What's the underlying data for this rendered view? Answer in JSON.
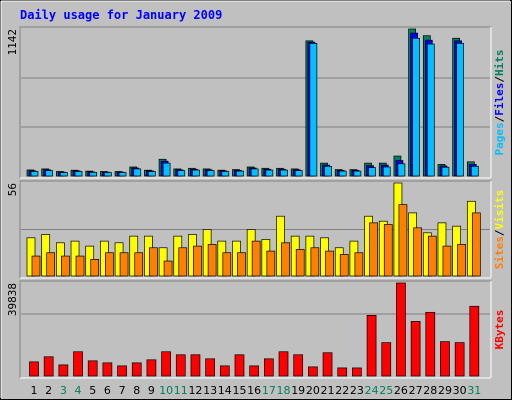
{
  "chart_data": [
    {
      "type": "bar",
      "title": "Daily usage for January 2009",
      "ylim": [
        0,
        1142
      ],
      "yticks": [
        1142
      ],
      "grid_values": [
        380.67,
        761.33
      ],
      "legend_separator": "/",
      "series": [
        {
          "name": "Hits",
          "color": "#00805c",
          "values": [
            47,
            55,
            35,
            45,
            38,
            35,
            35,
            70,
            45,
            130,
            55,
            60,
            55,
            45,
            50,
            70,
            60,
            60,
            55,
            1050,
            100,
            50,
            50,
            100,
            100,
            155,
            1142,
            1090,
            90,
            1070,
            110
          ]
        },
        {
          "name": "Files",
          "color": "#0000ff",
          "values": [
            40,
            48,
            30,
            40,
            32,
            30,
            30,
            62,
            40,
            115,
            48,
            52,
            48,
            40,
            44,
            62,
            52,
            52,
            48,
            1040,
            85,
            44,
            44,
            80,
            85,
            120,
            1110,
            1055,
            78,
            1050,
            90
          ]
        },
        {
          "name": "Pages",
          "color": "#00c0ff",
          "values": [
            35,
            42,
            27,
            35,
            28,
            27,
            27,
            55,
            35,
            100,
            42,
            46,
            42,
            35,
            38,
            55,
            46,
            46,
            42,
            1030,
            75,
            38,
            38,
            65,
            70,
            95,
            1070,
            1025,
            68,
            1030,
            75
          ]
        }
      ]
    },
    {
      "type": "bar",
      "ylim": [
        0,
        56
      ],
      "yticks": [
        56
      ],
      "grid_values": [
        28
      ],
      "legend_separator": "/",
      "series": [
        {
          "name": "Visits",
          "color": "#ffff00",
          "values": [
            23,
            25,
            20,
            21,
            18,
            21,
            20,
            24,
            24,
            17,
            24,
            25,
            28,
            21,
            21,
            28,
            22,
            36,
            24,
            24,
            23,
            17,
            21,
            36,
            33,
            56,
            38,
            26,
            32,
            30,
            45
          ]
        },
        {
          "name": "Sites",
          "color": "#ff8000",
          "values": [
            12,
            14,
            12,
            12,
            10,
            14,
            14,
            14,
            17,
            9,
            17,
            18,
            19,
            14,
            14,
            21,
            15,
            20,
            16,
            17,
            15,
            13,
            14,
            32,
            31,
            43,
            29,
            24,
            18,
            19,
            38
          ]
        }
      ]
    },
    {
      "type": "bar",
      "ylim": [
        0,
        39838
      ],
      "yticks": [
        39838
      ],
      "grid_values": [
        26559
      ],
      "categories": [
        "1",
        "2",
        "3",
        "4",
        "5",
        "6",
        "7",
        "8",
        "9",
        "10",
        "11",
        "12",
        "13",
        "14",
        "15",
        "16",
        "17",
        "18",
        "19",
        "20",
        "21",
        "22",
        "23",
        "24",
        "25",
        "26",
        "27",
        "28",
        "29",
        "30",
        "31"
      ],
      "weekend_indices": [
        2,
        3,
        9,
        10,
        16,
        17,
        23,
        24,
        30
      ],
      "weekend_color": "#00805c",
      "category_color": "#000000",
      "series": [
        {
          "name": "KBytes",
          "color": "#ff0000",
          "values": [
            6060,
            8230,
            4760,
            10390,
            6500,
            5630,
            4330,
            5630,
            6930,
            10390,
            9090,
            9090,
            7360,
            4330,
            9090,
            4330,
            7360,
            10390,
            9090,
            3900,
            9960,
            3460,
            3460,
            25980,
            14290,
            39838,
            23380,
            27280,
            14720,
            14290,
            29880
          ]
        }
      ]
    }
  ]
}
